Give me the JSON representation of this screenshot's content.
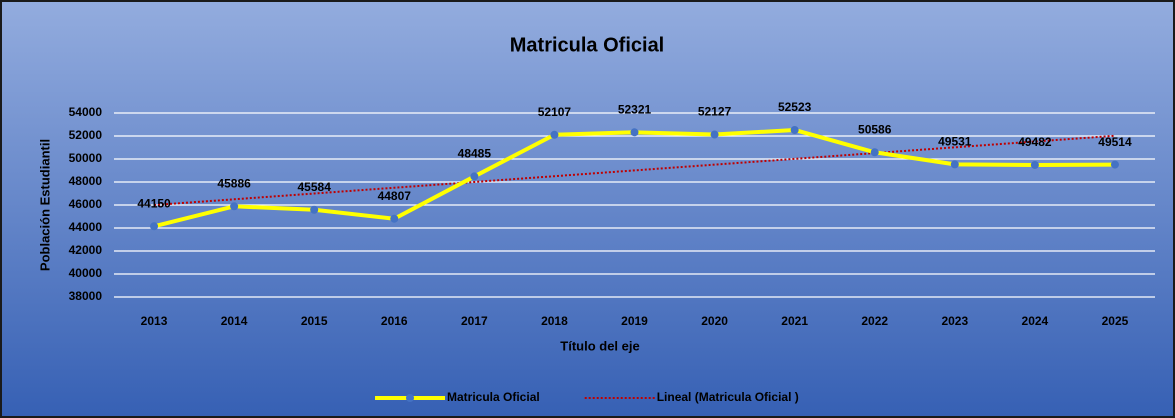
{
  "chart_data": {
    "type": "line",
    "title": "Matricula Oficial",
    "x_label": "Título del eje",
    "y_label": "Población Estudiantil",
    "categories": [
      "2013",
      "2014",
      "2015",
      "2016",
      "2017",
      "2018",
      "2019",
      "2020",
      "2021",
      "2022",
      "2023",
      "2024",
      "2025"
    ],
    "series": [
      {
        "name": "Matricula Oficial",
        "color": "#ffff00",
        "marker_color": "#4472c4",
        "values": [
          44150,
          45886,
          45584,
          44807,
          48485,
          52107,
          52321,
          52127,
          52523,
          50586,
          49531,
          49482,
          49514
        ]
      },
      {
        "name": "Lineal (Matricula Oficial )",
        "color": "#c00000",
        "style": "dotted",
        "values": [
          45995,
          46497,
          46999,
          47501,
          48003,
          48505,
          49008,
          49510,
          50012,
          50514,
          51016,
          51518,
          52021
        ]
      }
    ],
    "data_labels_series": 0,
    "ylim": [
      38000,
      54000
    ],
    "yticks": [
      38000,
      40000,
      42000,
      44000,
      46000,
      48000,
      50000,
      52000,
      54000
    ],
    "grid": true,
    "legend": "bottom"
  }
}
